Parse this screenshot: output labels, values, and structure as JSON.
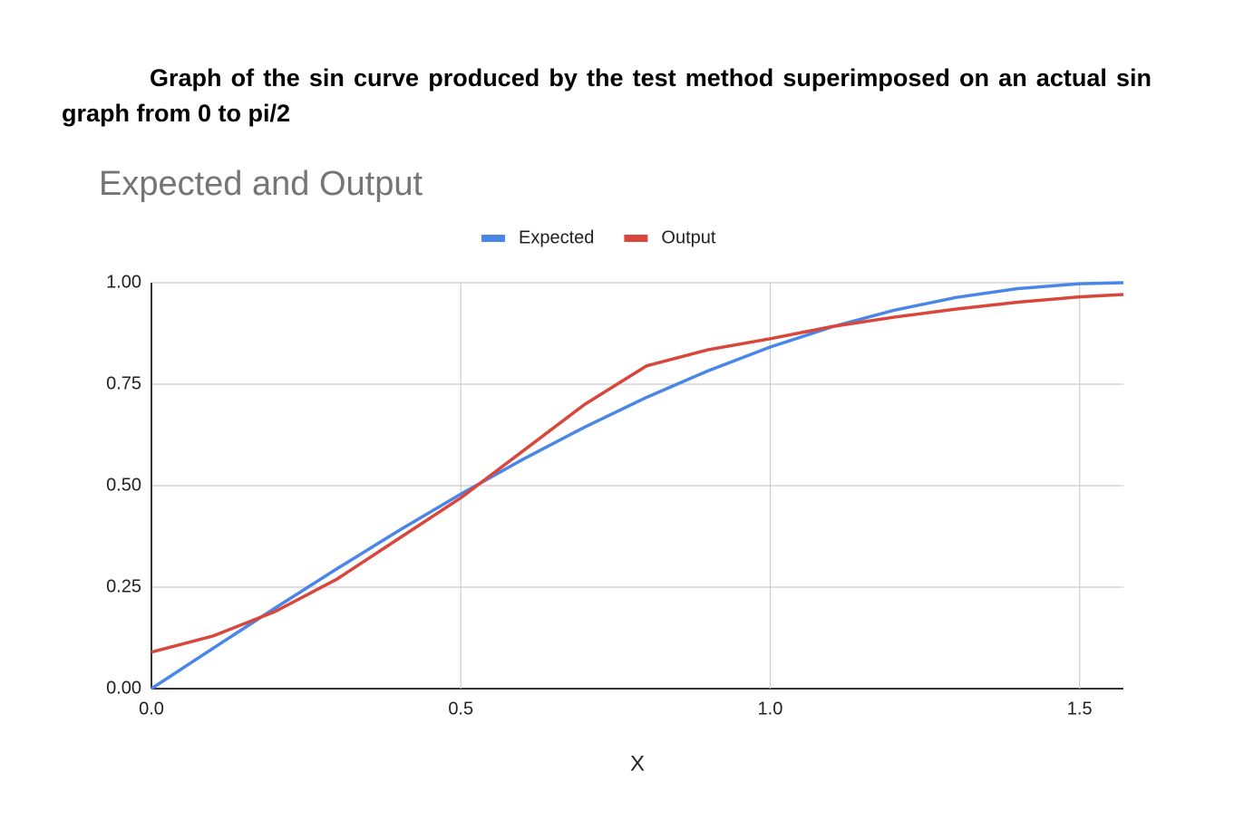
{
  "heading": "Graph of the sin curve produced by the test method superimposed on an actual sin graph from 0 to pi/2",
  "chart_data": {
    "type": "line",
    "title": "Expected and Output",
    "x_label": "X",
    "x": [
      0,
      0.1,
      0.2,
      0.3,
      0.4,
      0.5,
      0.6,
      0.7,
      0.8,
      0.9,
      1.0,
      1.1,
      1.2,
      1.3,
      1.4,
      1.5,
      1.5708
    ],
    "series": [
      {
        "name": "Expected",
        "color": "#4a86e8",
        "values": [
          0,
          0.0998,
          0.1987,
          0.2955,
          0.3894,
          0.4794,
          0.5646,
          0.6442,
          0.7174,
          0.7833,
          0.8415,
          0.8912,
          0.932,
          0.9636,
          0.9854,
          0.9975,
          1.0
        ]
      },
      {
        "name": "Output",
        "color": "#d9463b",
        "values": [
          0.09,
          0.13,
          0.19,
          0.27,
          0.37,
          0.47,
          0.585,
          0.7,
          0.795,
          0.835,
          0.862,
          0.892,
          0.915,
          0.935,
          0.952,
          0.965,
          0.971
        ]
      }
    ],
    "xlim": [
      0,
      1.5708
    ],
    "ylim": [
      0,
      1
    ],
    "xticks": [
      {
        "value": 0,
        "label": "0.0"
      },
      0.5,
      {
        "value": 1,
        "label": "1.0"
      },
      1.5
    ],
    "yticks": [
      {
        "value": 0,
        "label": "0.00"
      },
      {
        "value": 0.25,
        "label": "0.25"
      },
      {
        "value": 0.5,
        "label": "0.50"
      },
      {
        "value": 0.75,
        "label": "0.75"
      },
      {
        "value": 1,
        "label": "1.00"
      }
    ],
    "grid": true,
    "legend": "top"
  }
}
